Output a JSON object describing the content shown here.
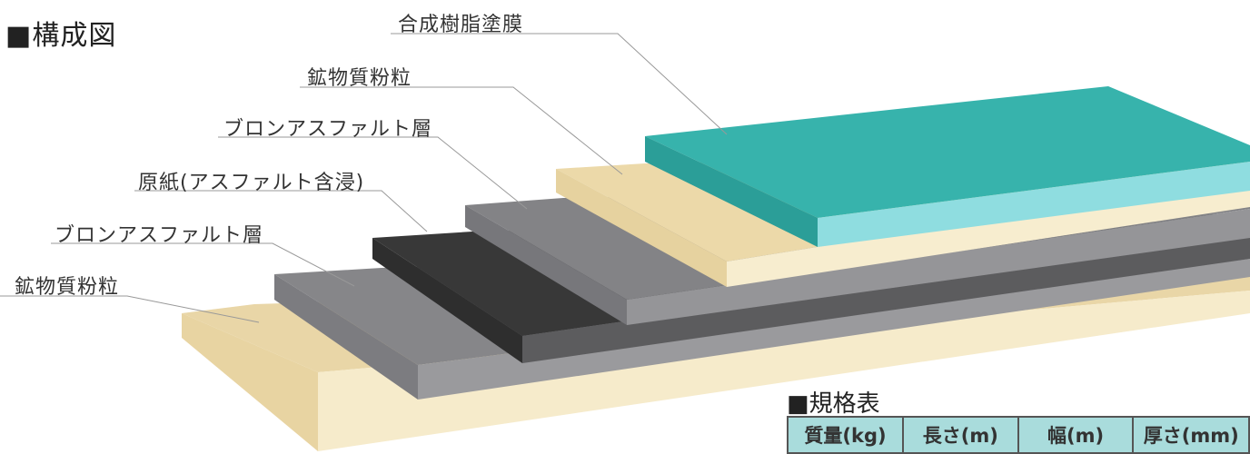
{
  "title": "■構成図",
  "layers": [
    {
      "label": "合成樹脂塗膜",
      "color": "#39b7b0"
    },
    {
      "label": "鉱物質粉粒",
      "color": "#efdcae"
    },
    {
      "label": "ブロンアスファルト層",
      "color": "#8a8a8d"
    },
    {
      "label": "原紙(アスファルト含浸)",
      "color": "#3a3a3a"
    },
    {
      "label": "ブロンアスファルト層",
      "color": "#8a8a8d"
    },
    {
      "label": "鉱物質粉粒",
      "color": "#efdcae"
    }
  ],
  "spec": {
    "title": "■規格表",
    "headers": [
      "質量(kg)",
      "長さ(m)",
      "幅(m)",
      "厚さ(mm)"
    ]
  }
}
